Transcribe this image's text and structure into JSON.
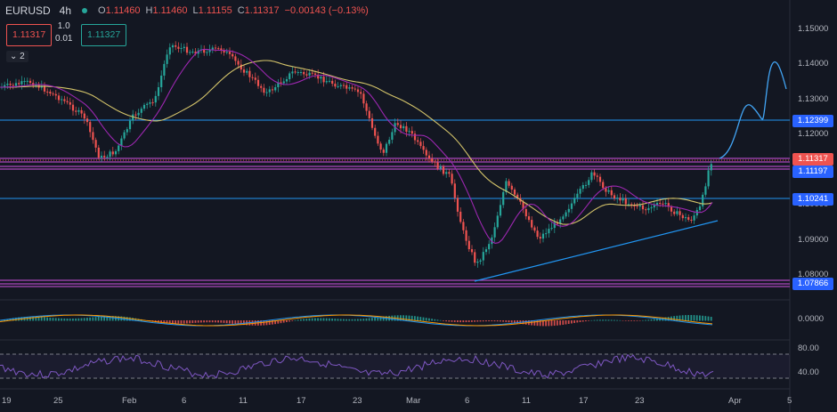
{
  "legend": {
    "symbol": "EURUSD",
    "timeframe": "4h",
    "open_label": "O",
    "open": "1.11460",
    "high_label": "H",
    "high": "1.11460",
    "low_label": "L",
    "low": "1.11155",
    "close_label": "C",
    "close": "1.11317",
    "change": "−0.00143 (−0.13%)"
  },
  "trade": {
    "sell_price": "1.11317",
    "qty_top": "1.0",
    "qty_bottom": "0.01",
    "buy_price": "1.11327"
  },
  "indicators_toggle": "⌄ 2",
  "colors": {
    "background": "#131722",
    "up": "#26a69a",
    "down": "#ef5350",
    "ma_slow": "#d4c46a",
    "ma_fast": "#9c27b0",
    "level": "#2196f3",
    "channel": "#ab47bc"
  },
  "price_axis": {
    "ticks": [
      "1.15000",
      "1.14000",
      "1.13000",
      "1.12000",
      "1.11000",
      "1.10000",
      "1.09000",
      "1.08000"
    ],
    "markers": [
      {
        "text": "1.12399",
        "color": "#2962ff"
      },
      {
        "text": "1.11317",
        "color": "#ef5350"
      },
      {
        "text": "1.11197",
        "color": "#2962ff"
      },
      {
        "text": "1.10241",
        "color": "#2962ff"
      },
      {
        "text": "1.07866",
        "color": "#2962ff"
      }
    ]
  },
  "macd_axis": {
    "ticks": [
      "0.0000"
    ]
  },
  "rsi_axis": {
    "ticks": [
      "80.00",
      "40.00"
    ]
  },
  "time_axis": {
    "ticks": [
      "19",
      "25",
      "Feb",
      "6",
      "11",
      "17",
      "23",
      "Mar",
      "6",
      "11",
      "17",
      "23",
      "Apr",
      "5"
    ]
  }
}
